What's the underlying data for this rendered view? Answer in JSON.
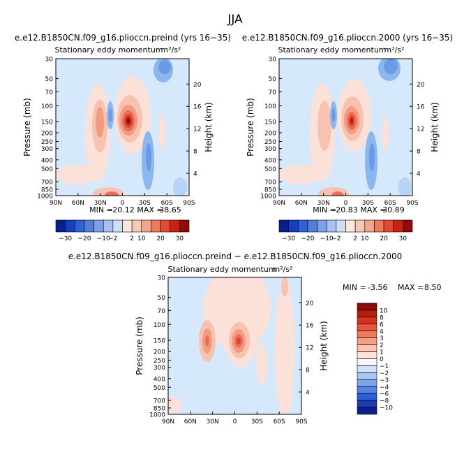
{
  "page_title": "JJA",
  "colors": {
    "bg_field": "#d6e8fb",
    "blue_1": "#b6d4f5",
    "blue_2": "#8bb6ee",
    "blue_3": "#6a9be6",
    "blue_4": "#4f7fdc",
    "red_1": "#fbe1d7",
    "red_2": "#f7c3b0",
    "red_3": "#f29a82",
    "red_4": "#ea6e55",
    "red_5": "#d9422b",
    "red_6": "#b31c12",
    "red_7": "#7e0a08"
  },
  "chart_data": [
    {
      "type": "heatmap",
      "id": "preind",
      "title": "e.e12.B1850CN.f09_g16.plioccn.preind (yrs 16−35)",
      "subtitle": "Stationary eddy momentum",
      "units": "m²/s²",
      "ylabel": "Pressure (mb)",
      "ylabel_right": "Height (km)",
      "x_ticks": [
        "90N",
        "60N",
        "30N",
        "0",
        "30S",
        "60S",
        "90S"
      ],
      "y_ticks": [
        "30",
        "50",
        "70",
        "100",
        "150",
        "200",
        "250",
        "300",
        "400",
        "500",
        "700",
        "850",
        "1000"
      ],
      "y_right_ticks": [
        "20",
        "16",
        "12",
        "8",
        "4"
      ],
      "stats": {
        "min_label": "MIN =",
        "min": "-20.12",
        "max_label": "MAX =",
        "max": "38.65"
      },
      "colorbar_labels": [
        "−30",
        "−20",
        "−10",
        "−2",
        "2",
        "10",
        "20",
        "30"
      ]
    },
    {
      "type": "heatmap",
      "id": "p2000",
      "title": "e.e12.B1850CN.f09_g16.plioccn.2000 (yrs 16−35)",
      "subtitle": "Stationary eddy momentum",
      "units": "m²/s²",
      "ylabel": "Pressure (mb)",
      "ylabel_right": "Height (km)",
      "x_ticks": [
        "90N",
        "60N",
        "30N",
        "0",
        "30S",
        "60S",
        "90S"
      ],
      "y_ticks": [
        "30",
        "50",
        "70",
        "100",
        "150",
        "200",
        "250",
        "300",
        "400",
        "500",
        "700",
        "850",
        "1000"
      ],
      "y_right_ticks": [
        "20",
        "16",
        "12",
        "8",
        "4"
      ],
      "stats": {
        "min_label": "MIN =",
        "min": "-20.83",
        "max_label": "MAX =",
        "max": "30.89"
      },
      "colorbar_labels": [
        "−30",
        "−20",
        "−10",
        "−2",
        "2",
        "10",
        "20",
        "30"
      ]
    },
    {
      "type": "heatmap",
      "id": "diff",
      "title": "e.e12.B1850CN.f09_g16.plioccn.preind − e.e12.B1850CN.f09_g16.plioccn.2000",
      "subtitle": "Stationary eddy momentum",
      "units": "m²/s²",
      "ylabel": "Pressure (mb)",
      "ylabel_right": "Height (km)",
      "x_ticks": [
        "90N",
        "60N",
        "30N",
        "0",
        "30S",
        "60S",
        "90S"
      ],
      "y_ticks": [
        "30",
        "50",
        "70",
        "100",
        "150",
        "200",
        "250",
        "300",
        "400",
        "500",
        "700",
        "850",
        "1000"
      ],
      "y_right_ticks": [
        "20",
        "16",
        "12",
        "8",
        "4"
      ],
      "stats": {
        "min_label": "MIN =",
        "min": "-3.56",
        "max_label": "MAX =",
        "max": "8.50"
      },
      "colorbar_labels": [
        "10",
        "8",
        "6",
        "4",
        "3",
        "2",
        "1",
        "0",
        "−1",
        "−2",
        "−3",
        "−4",
        "−6",
        "−8",
        "−10"
      ]
    }
  ]
}
